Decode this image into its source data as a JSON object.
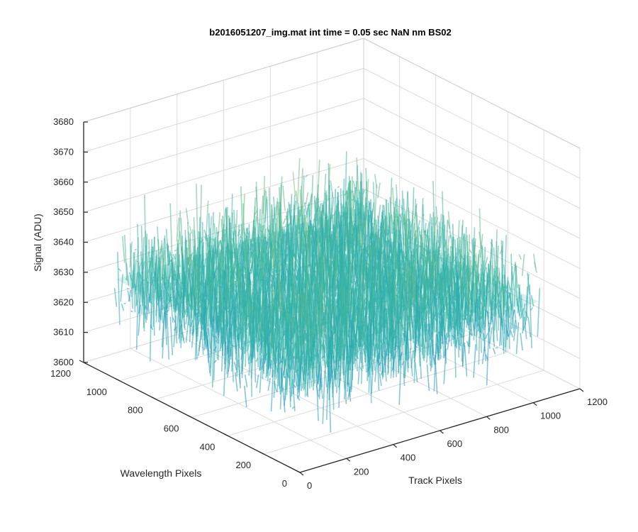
{
  "chart_data": {
    "type": "surface",
    "title": "b2016051207_img.mat int time = 0.05 sec  NaN nm BS02",
    "xlabel": "Track Pixels",
    "ylabel": "Wavelength Pixels",
    "zlabel": "Signal (ADU)",
    "x_ticks": [
      "0",
      "200",
      "400",
      "600",
      "800",
      "1000",
      "1200"
    ],
    "y_ticks": [
      "0",
      "200",
      "400",
      "600",
      "800",
      "1000",
      "1200"
    ],
    "z_ticks": [
      "3600",
      "3610",
      "3620",
      "3630",
      "3640",
      "3650",
      "3660",
      "3670",
      "3680"
    ],
    "xlim": [
      0,
      1200
    ],
    "ylim": [
      0,
      1200
    ],
    "zlim": [
      3600,
      3680
    ],
    "x_data_range": [
      1,
      1024
    ],
    "y_data_range": [
      1,
      1024
    ],
    "surface_mean": 3633,
    "surface_noise_range": [
      3605,
      3665
    ],
    "grid": true,
    "colormap": "parula",
    "colors": {
      "axis": "#262626",
      "grid": "#dcdcdc",
      "surface_low": "#1f7fd0",
      "surface_mid": "#2bb3a8",
      "surface_high": "#d9c94a"
    }
  }
}
